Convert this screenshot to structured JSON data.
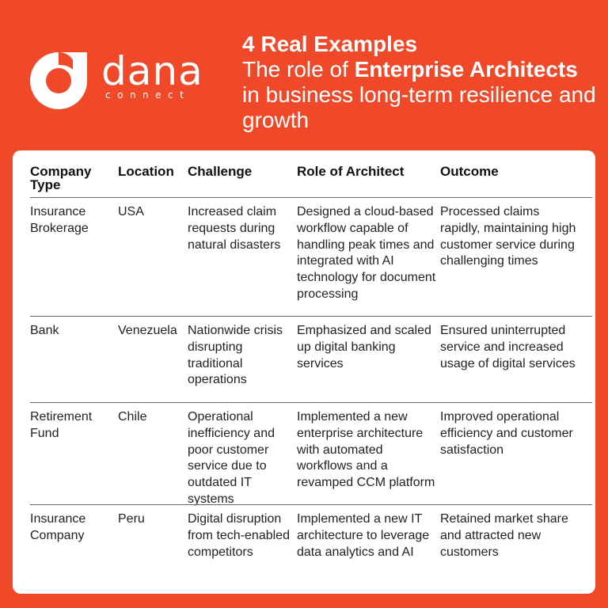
{
  "brand": {
    "name": "dana",
    "subname": "connect"
  },
  "headline": {
    "line1": "4 Real Examples",
    "prefix": "The role of ",
    "emphasis": "Enterprise Architects",
    "suffix": " in business long-term resilience and growth"
  },
  "colors": {
    "background": "#f0492a",
    "card": "#ffffff"
  },
  "table": {
    "headers": {
      "company_type": "Company Type",
      "location": "Location",
      "challenge": "Challenge",
      "role": "Role of Architect",
      "outcome": "Outcome"
    },
    "rows": [
      {
        "company_type": "Insurance Brokerage",
        "location": "USA",
        "challenge": "Increased claim requests during natural disasters",
        "role": "Designed a cloud-based workflow capable of handling peak times and integrated with AI technology for document processing",
        "outcome": "Processed claims rapidly, maintaining high customer service during challenging times"
      },
      {
        "company_type": "Bank",
        "location": "Venezuela",
        "challenge": "Nationwide crisis disrupting traditional operations",
        "role": "Emphasized and scaled up digital banking services",
        "outcome": "Ensured uninterrupted service and increased usage of digital services"
      },
      {
        "company_type": "Retirement Fund",
        "location": "Chile",
        "challenge": "Operational inefficiency and poor customer service due to outdated IT systems",
        "role": "Implemented a new enterprise architecture with automated workflows and a revamped CCM platform",
        "outcome": "Improved operational efficiency and customer satisfaction"
      },
      {
        "company_type": "Insurance Company",
        "location": "Peru",
        "challenge": "Digital disruption from tech-enabled competitors",
        "role": "Implemented a new IT architecture to leverage data analytics and AI",
        "outcome": "Retained market share and attracted new customers"
      }
    ]
  }
}
